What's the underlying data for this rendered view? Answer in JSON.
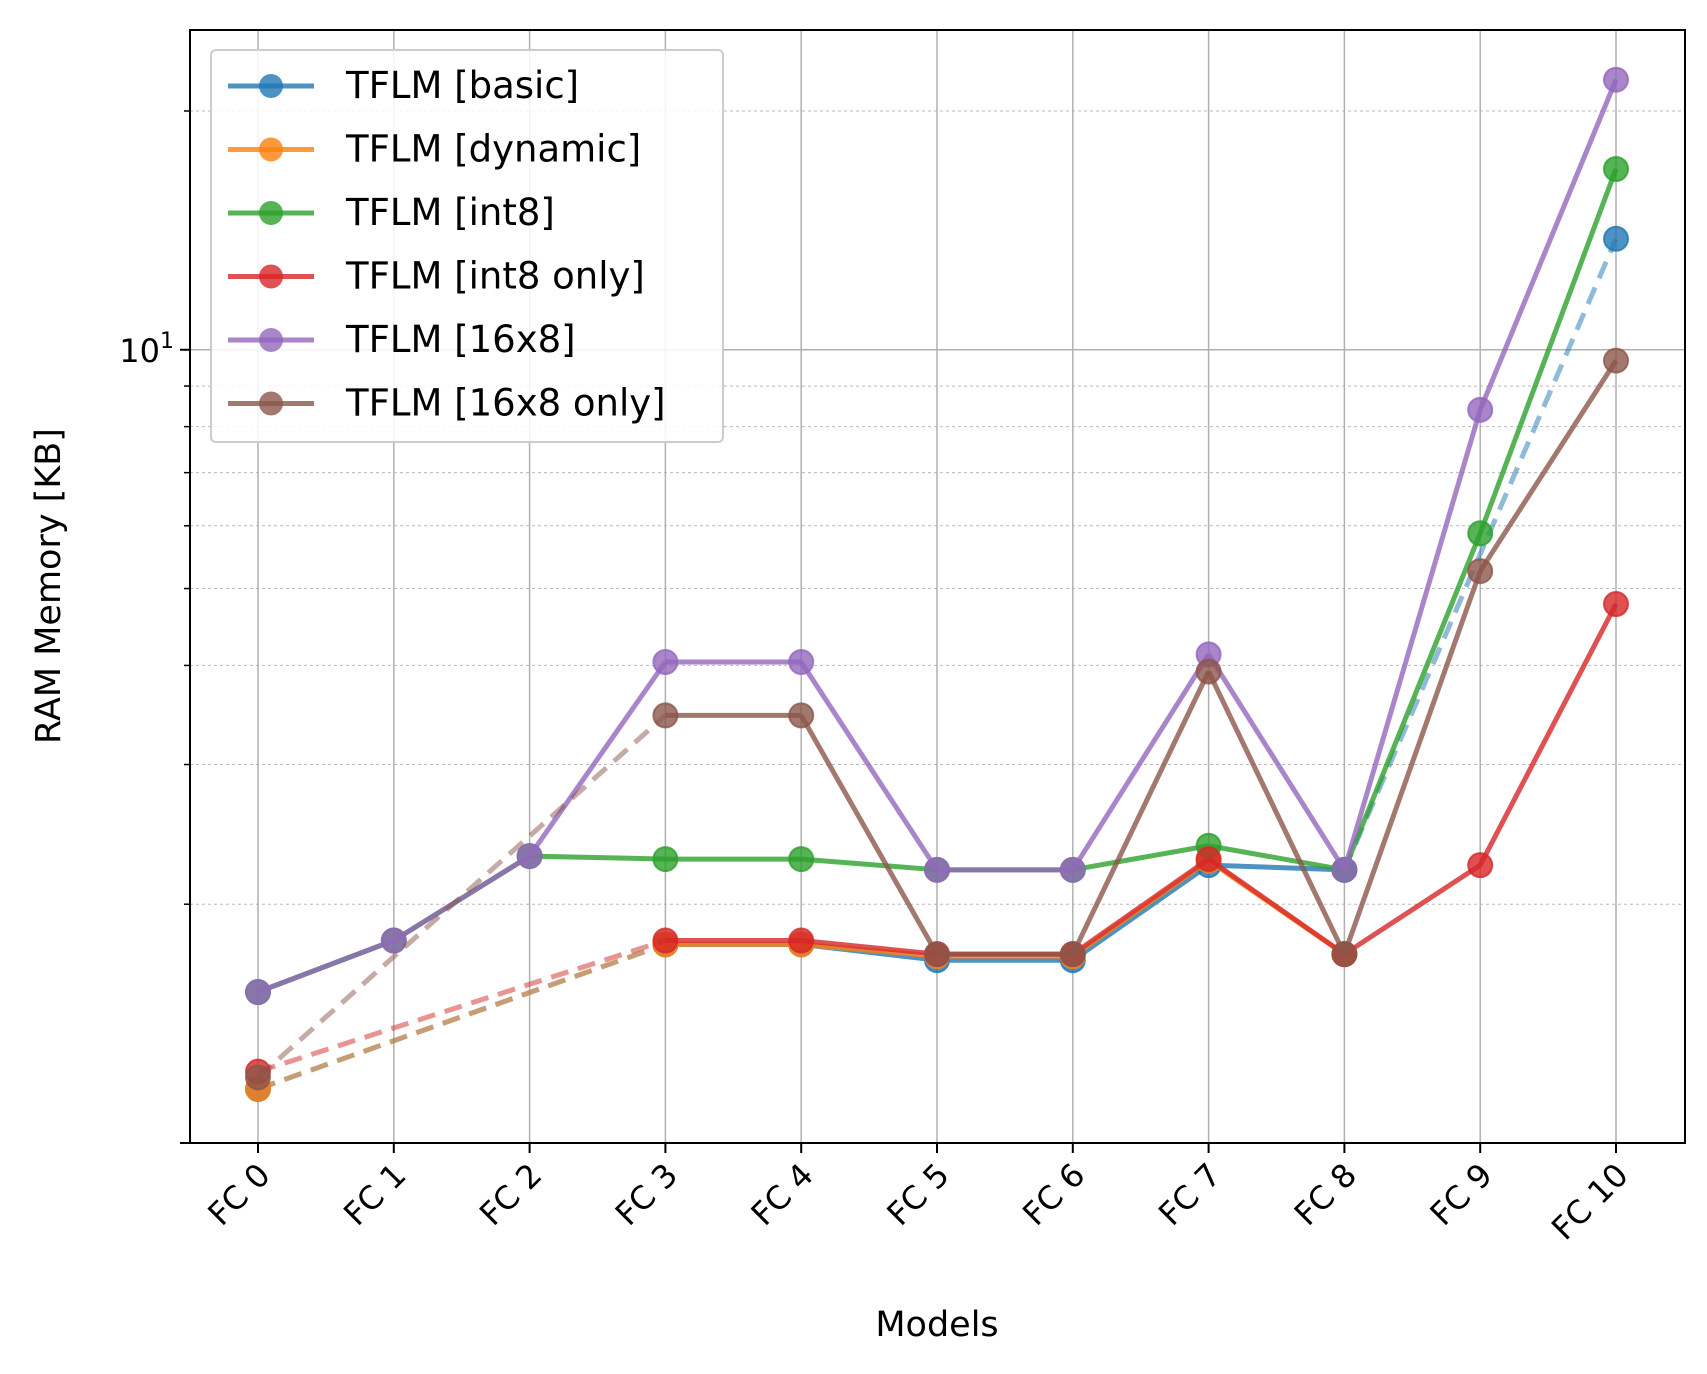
{
  "chart_data": {
    "type": "line",
    "title": "",
    "xlabel": "Models",
    "ylabel": "RAM Memory [KB]",
    "yscale": "log",
    "ylim": [
      1.0,
      25.3
    ],
    "ytick_labels": [
      {
        "value": 10,
        "base": "10",
        "exp": "1"
      }
    ],
    "grid": true,
    "legend_position": "top-left",
    "categories": [
      "FC 0",
      "FC 1",
      "FC 2",
      "FC 3",
      "FC 4",
      "FC 5",
      "FC 6",
      "FC 7",
      "FC 8",
      "FC 9",
      "FC 10"
    ],
    "series": [
      {
        "name": "TFLM [basic]",
        "color": "#1f77b4",
        "values": [
          1.17,
          null,
          null,
          1.78,
          1.78,
          1.7,
          1.7,
          2.24,
          2.21,
          null,
          13.8
        ]
      },
      {
        "name": "TFLM [dynamic]",
        "color": "#ff7f0e",
        "values": [
          1.17,
          null,
          null,
          1.78,
          1.78,
          1.72,
          1.72,
          2.27,
          1.73,
          null,
          null
        ]
      },
      {
        "name": "TFLM [int8]",
        "color": "#2ca02c",
        "values": [
          1.55,
          1.8,
          2.3,
          2.28,
          2.28,
          2.21,
          2.21,
          2.37,
          2.21,
          5.87,
          16.9
        ]
      },
      {
        "name": "TFLM [int8 only]",
        "color": "#d62728",
        "values": [
          1.23,
          null,
          null,
          1.8,
          1.8,
          1.73,
          1.73,
          2.28,
          1.73,
          2.24,
          4.78
        ]
      },
      {
        "name": "TFLM [16x8]",
        "color": "#9467bd",
        "values": [
          1.55,
          1.8,
          2.3,
          4.04,
          4.04,
          2.21,
          2.21,
          4.13,
          2.21,
          8.4,
          21.9
        ]
      },
      {
        "name": "TFLM [16x8 only]",
        "color": "#8c564b",
        "values": [
          1.21,
          null,
          null,
          3.46,
          3.46,
          1.73,
          1.73,
          3.93,
          1.73,
          5.26,
          9.69
        ]
      }
    ]
  }
}
